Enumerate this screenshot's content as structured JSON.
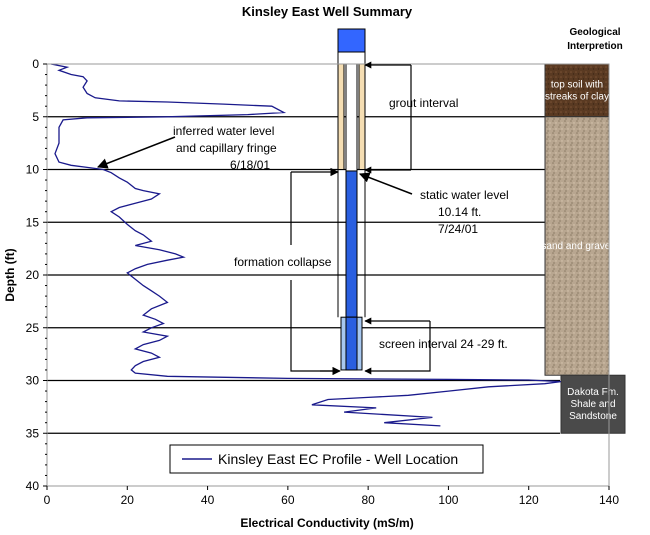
{
  "chart_data": {
    "type": "line",
    "title": "Kinsley East Well Summary",
    "xlabel": "Electrical Conductivity (mS/m)",
    "ylabel": "Depth (ft)",
    "xlim": [
      0,
      140
    ],
    "ylim": [
      0,
      40
    ],
    "y_inverted": true,
    "xticks": [
      0,
      20,
      40,
      60,
      80,
      100,
      120,
      140
    ],
    "yticks": [
      0,
      5,
      10,
      15,
      20,
      25,
      30,
      35,
      40
    ],
    "horizontal_lines_at_depth": [
      0,
      5,
      10,
      15,
      20,
      25,
      30,
      35
    ],
    "legend": {
      "label": "Kinsley East EC Profile - Well Location",
      "placement": "bottom-center"
    },
    "series": [
      {
        "name": "Kinsley East EC Profile - Well Location",
        "color": "#1a1a8c",
        "points": [
          [
            1,
            0
          ],
          [
            5,
            0.3
          ],
          [
            3,
            0.6
          ],
          [
            6,
            1
          ],
          [
            9,
            1.2
          ],
          [
            10,
            1.6
          ],
          [
            9,
            2.2
          ],
          [
            10,
            2.8
          ],
          [
            12,
            3.2
          ],
          [
            18,
            3.5
          ],
          [
            30,
            3.6
          ],
          [
            44,
            3.8
          ],
          [
            56,
            4
          ],
          [
            59,
            4.6
          ],
          [
            50,
            4.8
          ],
          [
            30,
            5
          ],
          [
            10,
            5.1
          ],
          [
            4,
            5.3
          ],
          [
            3,
            6
          ],
          [
            3,
            7.5
          ],
          [
            2,
            8.5
          ],
          [
            3,
            9.3
          ],
          [
            6,
            9.6
          ],
          [
            10,
            9.8
          ],
          [
            14,
            10
          ],
          [
            16,
            10.3
          ],
          [
            18,
            10.8
          ],
          [
            20,
            11.2
          ],
          [
            22,
            11.8
          ],
          [
            24,
            12
          ],
          [
            28,
            12.3
          ],
          [
            26,
            12.8
          ],
          [
            22,
            13.2
          ],
          [
            18,
            13.6
          ],
          [
            16,
            14
          ],
          [
            18,
            14.5
          ],
          [
            20,
            15.2
          ],
          [
            22,
            15.8
          ],
          [
            24,
            16.2
          ],
          [
            26,
            16.8
          ],
          [
            22,
            17.2
          ],
          [
            28,
            17.6
          ],
          [
            32,
            18
          ],
          [
            34,
            18.3
          ],
          [
            30,
            18.6
          ],
          [
            25,
            19
          ],
          [
            22,
            19.4
          ],
          [
            20,
            19.8
          ],
          [
            22,
            20.4
          ],
          [
            24,
            21
          ],
          [
            26,
            21.5
          ],
          [
            28,
            22
          ],
          [
            30,
            22.6
          ],
          [
            26,
            23.2
          ],
          [
            24,
            23.8
          ],
          [
            27,
            24.2
          ],
          [
            29,
            24.6
          ],
          [
            26,
            25
          ],
          [
            24,
            25.4
          ],
          [
            30,
            25.8
          ],
          [
            28,
            26.2
          ],
          [
            24,
            26.6
          ],
          [
            22,
            27
          ],
          [
            26,
            27.4
          ],
          [
            28,
            27.8
          ],
          [
            24,
            28.2
          ],
          [
            22,
            28.6
          ],
          [
            21,
            29
          ],
          [
            22,
            29.3
          ],
          [
            30,
            29.6
          ],
          [
            60,
            29.8
          ],
          [
            100,
            29.9
          ],
          [
            120,
            29.95
          ],
          [
            128,
            30.1
          ],
          [
            124,
            30.3
          ],
          [
            110,
            30.6
          ],
          [
            100,
            31
          ],
          [
            90,
            31.4
          ],
          [
            80,
            31.6
          ],
          [
            70,
            31.8
          ],
          [
            66,
            32.3
          ],
          [
            82,
            32.6
          ],
          [
            74,
            33
          ],
          [
            96,
            33.5
          ],
          [
            84,
            34
          ],
          [
            98,
            34.3
          ]
        ]
      }
    ]
  },
  "annotations": {
    "inferred_water": [
      "inferred water level",
      "and capillary fringe",
      "6/18/01"
    ],
    "grout": "grout interval",
    "static_water": [
      "static water level",
      "10.14 ft.",
      "7/24/01"
    ],
    "formation": "formation collapse",
    "screen": "screen interval 24 -29 ft."
  },
  "geology": {
    "header": [
      "Geological",
      "Interpretion"
    ],
    "layers": [
      {
        "lines": [
          "top soil with",
          "streaks of clay"
        ],
        "top": 0,
        "bottom": 5,
        "color": "#5a3a22",
        "text_color": "#ffffff"
      },
      {
        "lines": [
          "sand and gravel"
        ],
        "top": 5,
        "bottom": 29.5,
        "color": "#b8a690",
        "text_color": "#ffffff"
      },
      {
        "lines": [
          "Dakota Fm.",
          "Shale and",
          "Sandstone"
        ],
        "top": 29.5,
        "bottom": 35,
        "color": "#4a4a4a",
        "text_color": "#ffffff"
      }
    ]
  },
  "well": {
    "cap_color": "#3366ff",
    "grout_color": "#f5deb3",
    "water_color": "#2a5fe0",
    "screen_color": "#a8c8f0"
  }
}
